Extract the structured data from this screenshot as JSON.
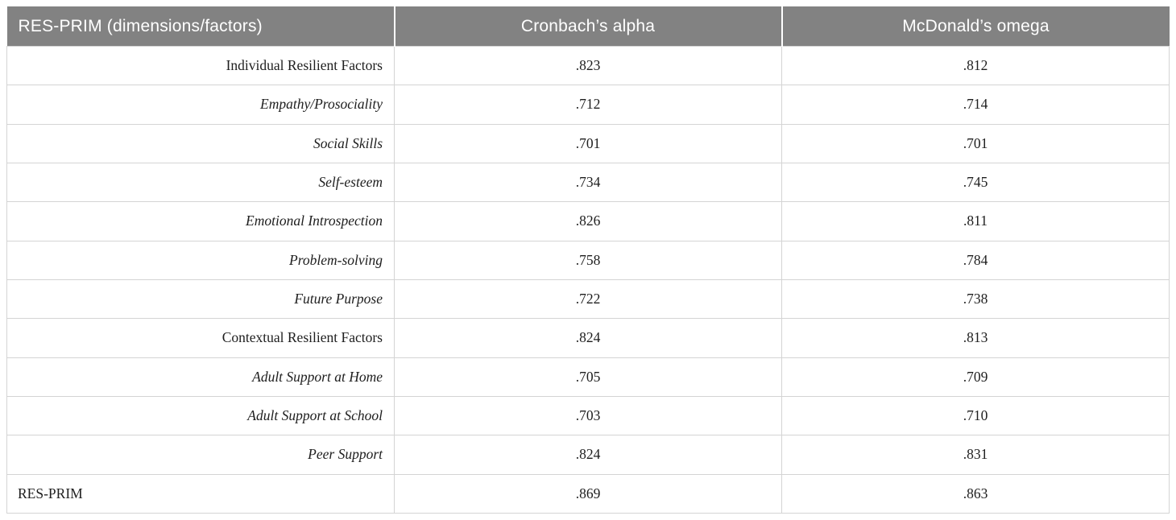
{
  "table": {
    "header": {
      "dimension": "RES-PRIM (dimensions/factors)",
      "alpha": "Cronbach’s alpha",
      "omega": "McDonald’s omega"
    },
    "colors": {
      "header_bg": "#828282",
      "header_text": "#ffffff",
      "body_text": "#1e1e1e",
      "grid_border": "#d4d4d4"
    },
    "rows": [
      {
        "label": "Individual Resilient Factors",
        "alpha": ".823",
        "omega": ".812"
      },
      {
        "label": "Empathy/Prosociality",
        "alpha": ".712",
        "omega": ".714"
      },
      {
        "label": "Social Skills",
        "alpha": ".701",
        "omega": ".701"
      },
      {
        "label": "Self-esteem",
        "alpha": ".734",
        "omega": ".745"
      },
      {
        "label": "Emotional Introspection",
        "alpha": ".826",
        "omega": ".811"
      },
      {
        "label": "Problem-solving",
        "alpha": ".758",
        "omega": ".784"
      },
      {
        "label": "Future Purpose",
        "alpha": ".722",
        "omega": ".738"
      },
      {
        "label": "Contextual Resilient Factors",
        "alpha": ".824",
        "omega": ".813"
      },
      {
        "label": "Adult Support at Home",
        "alpha": ".705",
        "omega": ".709"
      },
      {
        "label": "Adult Support at School",
        "alpha": ".703",
        "omega": ".710"
      },
      {
        "label": "Peer Support",
        "alpha": ".824",
        "omega": ".831"
      },
      {
        "label": "RES-PRIM",
        "alpha": ".869",
        "omega": ".863"
      }
    ]
  }
}
